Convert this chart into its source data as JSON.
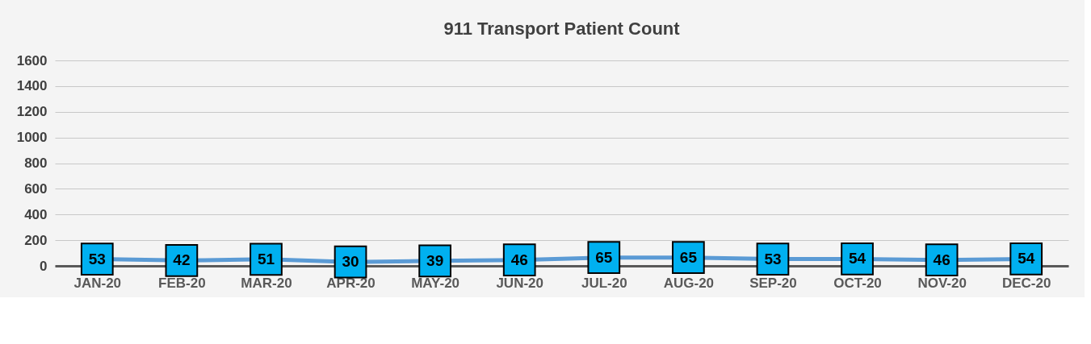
{
  "chart_data": {
    "type": "line",
    "title": "911 Transport Patient Count",
    "categories": [
      "JAN-20",
      "FEB-20",
      "MAR-20",
      "APR-20",
      "MAY-20",
      "JUN-20",
      "JUL-20",
      "AUG-20",
      "SEP-20",
      "OCT-20",
      "NOV-20",
      "DEC-20"
    ],
    "series": [
      {
        "color": "#5b9bd5",
        "values": [
          53,
          42,
          51,
          30,
          39,
          46,
          65,
          65,
          53,
          54,
          46,
          54
        ]
      }
    ],
    "ylim": [
      0,
      1600
    ],
    "yticks": [
      0,
      200,
      400,
      600,
      800,
      1000,
      1200,
      1400,
      1600
    ],
    "grid": "y",
    "marker": "square",
    "line_style": "solid",
    "data_labels": true
  }
}
